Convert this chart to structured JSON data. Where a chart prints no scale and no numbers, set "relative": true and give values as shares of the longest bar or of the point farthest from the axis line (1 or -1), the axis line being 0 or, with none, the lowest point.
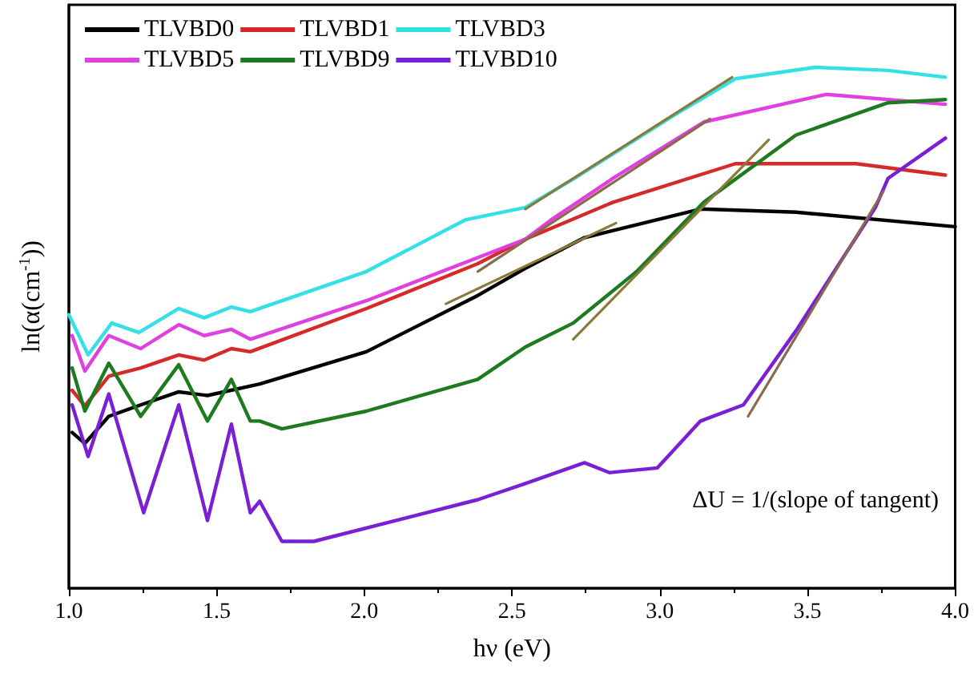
{
  "chart_data": {
    "type": "line",
    "relative": true,
    "xlabel": "hν (eV)",
    "ylabel": "ln(α(cm$^{-1}$))",
    "xlim": [
      1,
      4
    ],
    "xticks": [
      {
        "value": 1,
        "label": "1.0"
      },
      {
        "value": 1.5,
        "label": "1.5"
      },
      {
        "value": 2,
        "label": "2.0"
      },
      {
        "value": 2.5,
        "label": "2.5"
      },
      {
        "value": 3,
        "label": "3.0"
      },
      {
        "value": 3.5,
        "label": "3.5"
      },
      {
        "value": 4,
        "label": "4.0"
      }
    ],
    "grid": false,
    "legend": "top left",
    "marker": "none",
    "line_style": "solid",
    "annotations": [
      "ΔU = 1/(slope of tangent)"
    ],
    "series": [
      {
        "name": "TLVBD0",
        "color": "#000000",
        "x": [
          1.011,
          1.054,
          1.135,
          1.243,
          1.372,
          1.469,
          1.646,
          2.007,
          2.384,
          2.545,
          2.745,
          3.138,
          3.461,
          4.0
        ],
        "values": [
          0.299,
          0.278,
          0.33,
          0.352,
          0.377,
          0.37,
          0.392,
          0.454,
          0.562,
          0.614,
          0.673,
          0.728,
          0.722,
          0.694
        ]
      },
      {
        "name": "TLVBD1",
        "color": "#d42a2a",
        "x": [
          1.011,
          1.054,
          1.135,
          1.243,
          1.372,
          1.458,
          1.55,
          1.614,
          2.007,
          2.384,
          2.545,
          2.842,
          3.256,
          3.665,
          3.967
        ],
        "values": [
          0.38,
          0.35,
          0.407,
          0.423,
          0.448,
          0.438,
          0.46,
          0.454,
          0.537,
          0.623,
          0.67,
          0.741,
          0.815,
          0.815,
          0.793
        ]
      },
      {
        "name": "TLVBD3",
        "color": "#33e0e6",
        "x": [
          1.0,
          1.065,
          1.145,
          1.237,
          1.372,
          1.458,
          1.55,
          1.614,
          2.007,
          2.341,
          2.545,
          2.712,
          3.046,
          3.256,
          3.526,
          3.773,
          3.967
        ],
        "values": [
          0.525,
          0.448,
          0.509,
          0.491,
          0.537,
          0.519,
          0.54,
          0.531,
          0.608,
          0.707,
          0.731,
          0.787,
          0.907,
          0.978,
          1.0,
          0.994,
          0.981
        ]
      },
      {
        "name": "TLVBD5",
        "color": "#e040e0",
        "x": [
          1.011,
          1.054,
          1.135,
          1.243,
          1.372,
          1.458,
          1.55,
          1.614,
          2.007,
          2.545,
          2.632,
          2.842,
          3.149,
          3.563,
          3.967
        ],
        "values": [
          0.485,
          0.417,
          0.485,
          0.46,
          0.506,
          0.485,
          0.497,
          0.478,
          0.552,
          0.67,
          0.707,
          0.787,
          0.895,
          0.948,
          0.929
        ]
      },
      {
        "name": "TLVBD9",
        "color": "#1e7a1e",
        "x": [
          1.011,
          1.054,
          1.135,
          1.243,
          1.372,
          1.469,
          1.55,
          1.614,
          1.646,
          1.721,
          2.007,
          2.384,
          2.545,
          2.707,
          2.922,
          3.149,
          3.461,
          3.773,
          3.967
        ],
        "values": [
          0.423,
          0.34,
          0.432,
          0.33,
          0.429,
          0.321,
          0.401,
          0.321,
          0.321,
          0.306,
          0.34,
          0.401,
          0.463,
          0.509,
          0.608,
          0.741,
          0.87,
          0.932,
          0.938
        ]
      },
      {
        "name": "TLVBD10",
        "color": "#7a1fd6",
        "x": [
          1.011,
          1.065,
          1.135,
          1.253,
          1.372,
          1.469,
          1.55,
          1.614,
          1.646,
          1.721,
          1.829,
          2.384,
          2.545,
          2.745,
          2.83,
          2.992,
          3.138,
          3.283,
          3.461,
          3.73,
          3.773,
          3.967
        ],
        "values": [
          0.352,
          0.253,
          0.373,
          0.145,
          0.352,
          0.13,
          0.315,
          0.145,
          0.167,
          0.09,
          0.09,
          0.17,
          0.201,
          0.241,
          0.222,
          0.231,
          0.321,
          0.352,
          0.494,
          0.731,
          0.787,
          0.864
        ]
      },
      {
        "color": "#8a7a3a",
        "x": [
          2.545,
          3.245
        ],
        "values": [
          0.728,
          0.981
        ]
      },
      {
        "color": "#8a6a4a",
        "x": [
          2.384,
          3.17
        ],
        "values": [
          0.608,
          0.901
        ]
      },
      {
        "color": "#8a7a3a",
        "x": [
          2.276,
          2.852
        ],
        "values": [
          0.546,
          0.701
        ]
      },
      {
        "color": "#8a7a3a",
        "x": [
          2.707,
          3.369
        ],
        "values": [
          0.478,
          0.861
        ]
      },
      {
        "color": "#8a6a4a",
        "x": [
          3.299,
          3.757
        ],
        "values": [
          0.33,
          0.762
        ]
      }
    ]
  }
}
